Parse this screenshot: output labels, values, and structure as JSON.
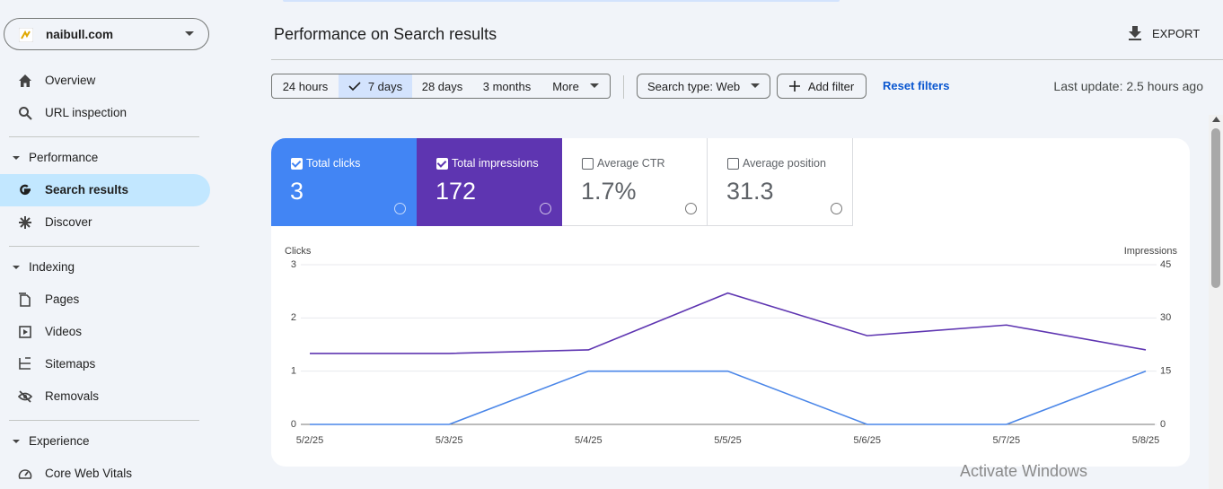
{
  "sidebar": {
    "property": "naibull.com",
    "top": [
      "Overview",
      "URL inspection"
    ],
    "sections": [
      {
        "title": "Performance",
        "items": [
          "Search results",
          "Discover"
        ]
      },
      {
        "title": "Indexing",
        "items": [
          "Pages",
          "Videos",
          "Sitemaps",
          "Removals"
        ]
      },
      {
        "title": "Experience",
        "items": [
          "Core Web Vitals"
        ]
      }
    ]
  },
  "header": {
    "title": "Performance on Search results",
    "export": "EXPORT"
  },
  "filters": {
    "ranges": [
      "24 hours",
      "7 days",
      "28 days",
      "3 months",
      "More"
    ],
    "search_type": "Search type: Web",
    "add_filter": "Add filter",
    "reset": "Reset filters",
    "last_update": "Last update: 2.5 hours ago"
  },
  "metrics": [
    {
      "label": "Total clicks",
      "value": "3",
      "selected": true,
      "color": "#4285f4"
    },
    {
      "label": "Total impressions",
      "value": "172",
      "selected": true,
      "color": "#5e35b1"
    },
    {
      "label": "Average CTR",
      "value": "1.7%",
      "selected": false
    },
    {
      "label": "Average position",
      "value": "31.3",
      "selected": false
    }
  ],
  "chart_data": {
    "type": "line",
    "categories": [
      "5/2/25",
      "5/3/25",
      "5/4/25",
      "5/5/25",
      "5/6/25",
      "5/7/25",
      "5/8/25"
    ],
    "series": [
      {
        "name": "Clicks",
        "color": "#4a86e8",
        "values": [
          0,
          0,
          1,
          1,
          0,
          0,
          1
        ]
      },
      {
        "name": "Impressions",
        "color": "#5e35b1",
        "axis": "y2",
        "values": [
          20,
          20,
          21,
          37,
          25,
          28,
          21
        ]
      }
    ],
    "ylim": [
      0,
      3
    ],
    "yticks": [
      0,
      1,
      2,
      3
    ],
    "y2lim": [
      0,
      45
    ],
    "y2ticks": [
      0,
      15,
      30,
      45
    ],
    "grid": true
  },
  "watermark": "Activate Windows"
}
